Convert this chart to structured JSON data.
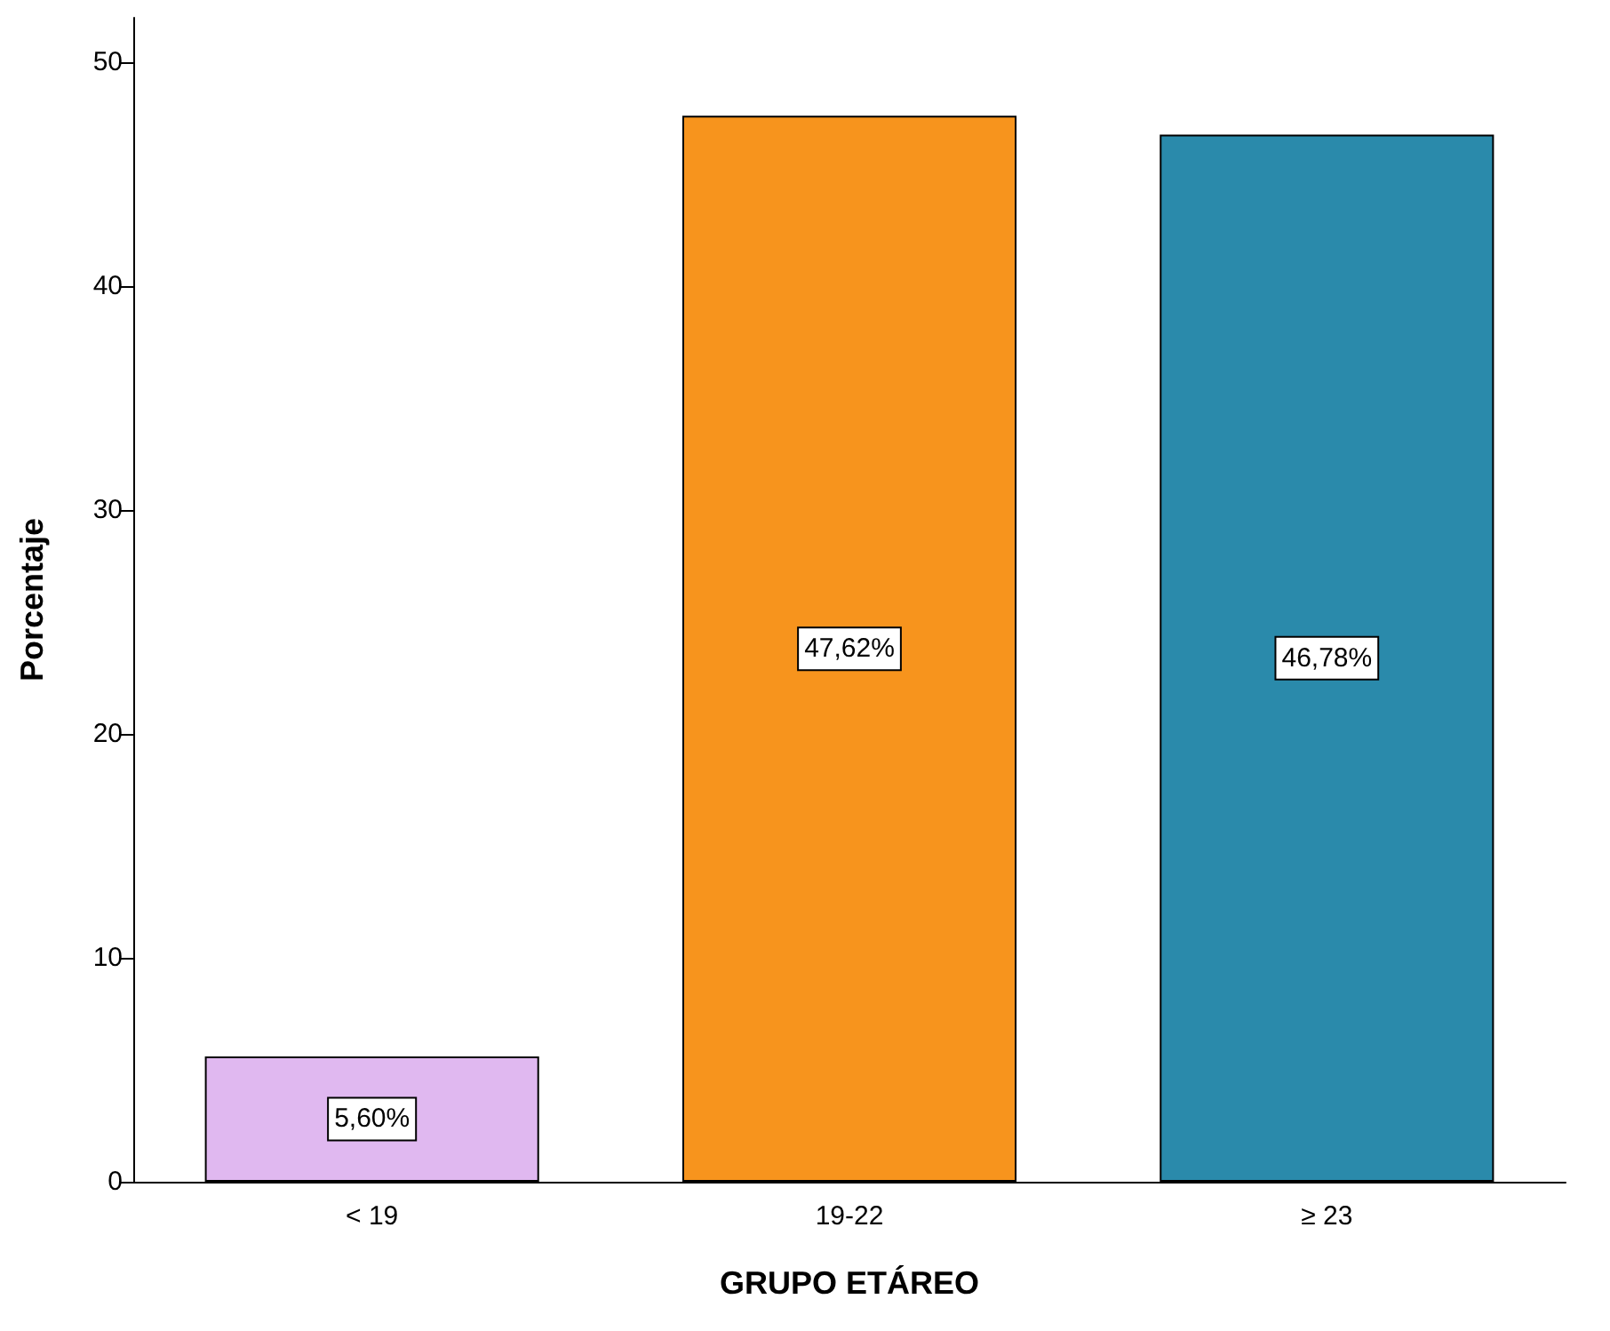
{
  "chart_data": {
    "type": "bar",
    "xlabel": "GRUPO ETÁREO",
    "ylabel": "Porcentaje",
    "categories": [
      "< 19",
      "19-22",
      "≥ 23"
    ],
    "values": [
      5.6,
      47.62,
      46.78
    ],
    "colors": [
      "#e0b8f0",
      "#f7941d",
      "#2a8aab"
    ],
    "value_labels": [
      "5,60%",
      "47,62%",
      "46,78%"
    ],
    "ylim": [
      0,
      52
    ],
    "yticks": [
      0,
      10,
      20,
      30,
      40,
      50
    ],
    "grid": false
  }
}
